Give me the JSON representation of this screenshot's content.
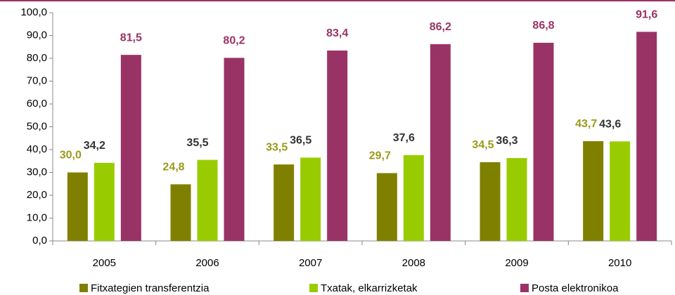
{
  "chart_data": {
    "type": "bar",
    "categories": [
      "2005",
      "2006",
      "2007",
      "2008",
      "2009",
      "2010"
    ],
    "series": [
      {
        "name": "Fitxategien transferentzia",
        "color": "#808000",
        "label_color": "#9a9a1a",
        "values": [
          30.0,
          24.8,
          33.5,
          29.7,
          34.5,
          43.7
        ],
        "value_labels": [
          "30,0",
          "24,8",
          "33,5",
          "29,7",
          "34,5",
          "43,7"
        ]
      },
      {
        "name": "Txatak, elkarrizketak",
        "color": "#99cc00",
        "label_color": "#333333",
        "values": [
          34.2,
          35.5,
          36.5,
          37.6,
          36.3,
          43.6
        ],
        "value_labels": [
          "34,2",
          "35,5",
          "36,5",
          "37,6",
          "36,3",
          "43,6"
        ]
      },
      {
        "name": "Posta elektronikoa",
        "color": "#993366",
        "label_color": "#993366",
        "values": [
          81.5,
          80.2,
          83.4,
          86.2,
          86.8,
          91.6
        ],
        "value_labels": [
          "81,5",
          "80,2",
          "83,4",
          "86,2",
          "86,8",
          "91,6"
        ]
      }
    ],
    "ylim": [
      0,
      100
    ],
    "yticks": [
      {
        "value": 0,
        "label": "0,0"
      },
      {
        "value": 10,
        "label": "10,0"
      },
      {
        "value": 20,
        "label": "20,0"
      },
      {
        "value": 30,
        "label": "30,0"
      },
      {
        "value": 40,
        "label": "40,0"
      },
      {
        "value": 50,
        "label": "50,0"
      },
      {
        "value": 60,
        "label": "60,0"
      },
      {
        "value": 70,
        "label": "70,0"
      },
      {
        "value": 80,
        "label": "80,0"
      },
      {
        "value": 90,
        "label": "90,0"
      },
      {
        "value": 100,
        "label": "100,0"
      }
    ]
  }
}
